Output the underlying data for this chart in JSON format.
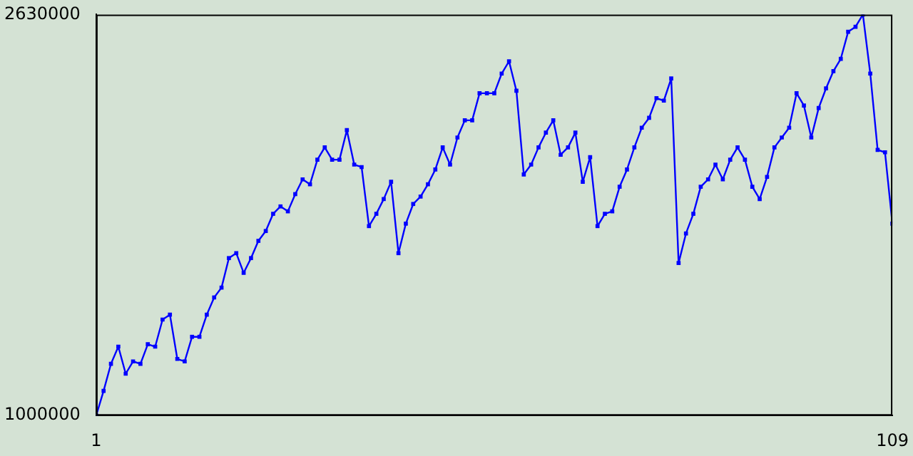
{
  "chart_data": {
    "type": "line",
    "x": [
      1,
      2,
      3,
      4,
      5,
      6,
      7,
      8,
      9,
      10,
      11,
      12,
      13,
      14,
      15,
      16,
      17,
      18,
      19,
      20,
      21,
      22,
      23,
      24,
      25,
      26,
      27,
      28,
      29,
      30,
      31,
      32,
      33,
      34,
      35,
      36,
      37,
      38,
      39,
      40,
      41,
      42,
      43,
      44,
      45,
      46,
      47,
      48,
      49,
      50,
      51,
      52,
      53,
      54,
      55,
      56,
      57,
      58,
      59,
      60,
      61,
      62,
      63,
      64,
      65,
      66,
      67,
      68,
      69,
      70,
      71,
      72,
      73,
      74,
      75,
      76,
      77,
      78,
      79,
      80,
      81,
      82,
      83,
      84,
      85,
      86,
      87,
      88,
      89,
      90,
      91,
      92,
      93,
      94,
      95,
      96,
      97,
      98,
      99,
      100,
      101,
      102,
      103,
      104,
      105,
      106,
      107,
      108,
      109
    ],
    "series": [
      {
        "color": "#0000ff",
        "values": [
          1000000,
          1100000,
          1210000,
          1280000,
          1170000,
          1220000,
          1210000,
          1290000,
          1280000,
          1390000,
          1410000,
          1230000,
          1220000,
          1320000,
          1320000,
          1410000,
          1480000,
          1520000,
          1640000,
          1660000,
          1580000,
          1640000,
          1710000,
          1750000,
          1820000,
          1850000,
          1830000,
          1900000,
          1960000,
          1940000,
          2040000,
          2090000,
          2040000,
          2040000,
          2160000,
          2020000,
          2010000,
          1770000,
          1820000,
          1880000,
          1950000,
          1660000,
          1780000,
          1860000,
          1890000,
          1940000,
          2000000,
          2090000,
          2020000,
          2130000,
          2200000,
          2200000,
          2310000,
          2310000,
          2310000,
          2390000,
          2440000,
          2320000,
          1980000,
          2020000,
          2090000,
          2150000,
          2200000,
          2060000,
          2090000,
          2150000,
          1950000,
          2050000,
          1770000,
          1820000,
          1830000,
          1930000,
          2000000,
          2090000,
          2170000,
          2210000,
          2290000,
          2280000,
          2370000,
          1620000,
          1740000,
          1820000,
          1930000,
          1960000,
          2020000,
          1960000,
          2040000,
          2090000,
          2040000,
          1930000,
          1880000,
          1970000,
          2090000,
          2130000,
          2170000,
          2310000,
          2260000,
          2130000,
          2250000,
          2330000,
          2400000,
          2450000,
          2560000,
          2580000,
          2630000,
          2390000,
          2080000,
          2070000,
          1780000
        ]
      }
    ],
    "xlim": [
      1,
      109
    ],
    "xticks": [
      1,
      109
    ],
    "ylim": [
      1000000,
      2630000
    ],
    "yticks": [
      1000000,
      2630000
    ],
    "grid": false,
    "legend": false,
    "marker": "square",
    "line_style": "solid"
  }
}
